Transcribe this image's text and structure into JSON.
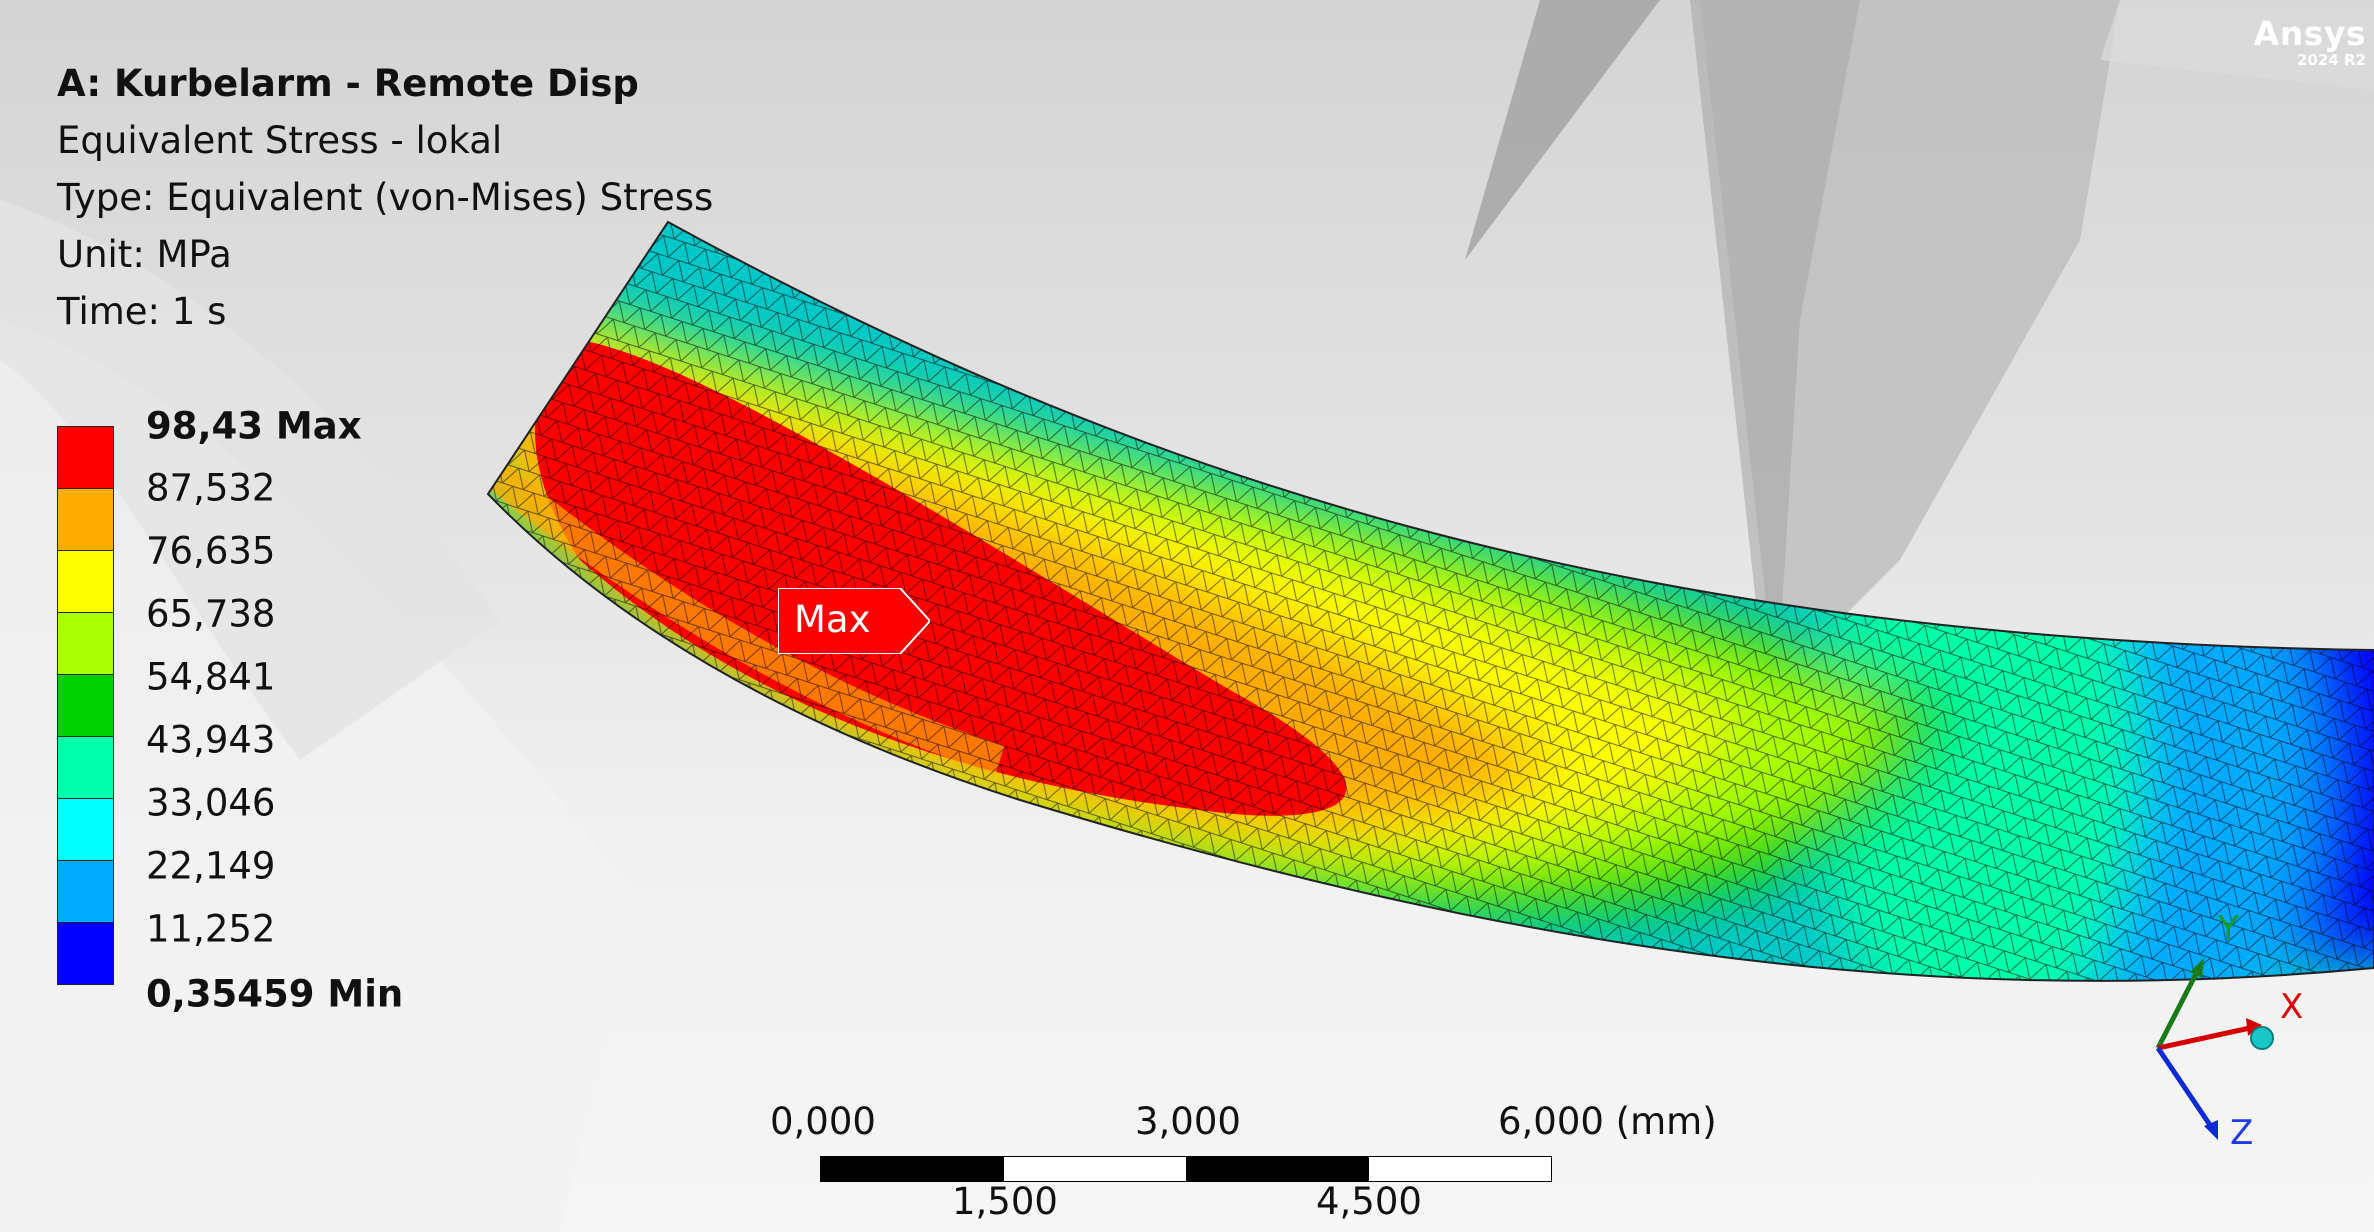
{
  "header": {
    "title": "A: Kurbelarm - Remote Disp",
    "result_name": "Equivalent Stress - lokal",
    "type_line": "Type: Equivalent (von-Mises) Stress",
    "unit_line": "Unit: MPa",
    "time_line": "Time: 1 s"
  },
  "legend": {
    "max_label": "98,43 Max",
    "min_label": "0,35459 Min",
    "levels": [
      "87,532",
      "76,635",
      "65,738",
      "54,841",
      "43,943",
      "33,046",
      "22,149",
      "11,252"
    ],
    "colors": [
      "#ff0000",
      "#ffab00",
      "#ffff00",
      "#aaff00",
      "#00d200",
      "#00ffaa",
      "#00ffff",
      "#00aaff",
      "#0000ff"
    ]
  },
  "probe": {
    "max_tag": "Max"
  },
  "scale": {
    "top_ticks": [
      "0,000",
      "3,000",
      "6,000 (mm)"
    ],
    "bottom_ticks": [
      "1,500",
      "4,500"
    ]
  },
  "triad": {
    "x_label": "X",
    "y_label": "Y",
    "z_label": "Z"
  },
  "logo": {
    "name": "Ansys",
    "version": "2024 R2"
  }
}
